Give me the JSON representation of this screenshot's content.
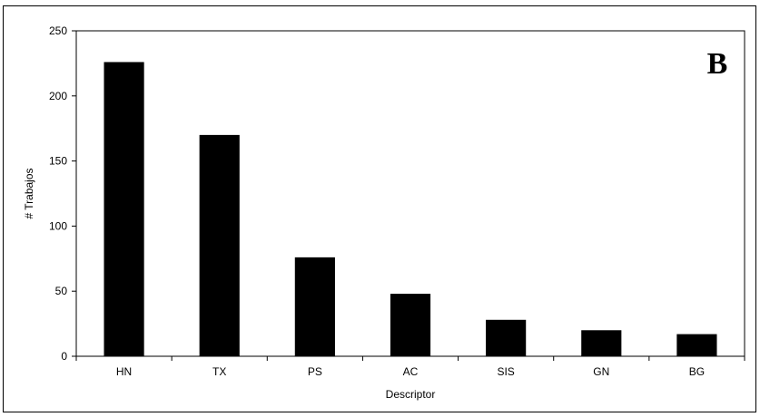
{
  "chart_data": {
    "type": "bar",
    "categories": [
      "HN",
      "TX",
      "PS",
      "AC",
      "SIS",
      "GN",
      "BG"
    ],
    "values": [
      226,
      170,
      76,
      48,
      28,
      20,
      17
    ],
    "yticks": [
      "0",
      "50",
      "100",
      "150",
      "200",
      "250"
    ],
    "ylim": [
      0,
      250
    ],
    "xlabel": "Descriptor",
    "ylabel": "# Trabajos",
    "panel_label": "B",
    "bar_color": "#000000",
    "grid": false,
    "legend": "none"
  }
}
